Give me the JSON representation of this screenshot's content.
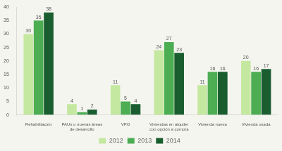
{
  "chart_data": {
    "type": "bar",
    "categories": [
      "Rehabilitación",
      "PAUs o nuevas áreas\nde desarrollo",
      "VPO",
      "Viviendas en alquiler\ncon opción a compra",
      "Vivienda nueva",
      "Vivienda usada"
    ],
    "series": [
      {
        "name": "2012",
        "color": "#c5e8a0",
        "values": [
          30,
          4,
          11,
          24,
          11,
          20
        ]
      },
      {
        "name": "2013",
        "color": "#4cad52",
        "values": [
          35,
          1,
          5,
          27,
          16,
          16
        ]
      },
      {
        "name": "2014",
        "color": "#1a5e30",
        "values": [
          38,
          2,
          4,
          23,
          16,
          17
        ]
      }
    ],
    "ylim": [
      0,
      40
    ],
    "yticks": [
      0,
      5,
      10,
      15,
      20,
      25,
      30,
      35,
      40
    ],
    "grid": false,
    "legend": "bottom",
    "data_labels": true
  }
}
